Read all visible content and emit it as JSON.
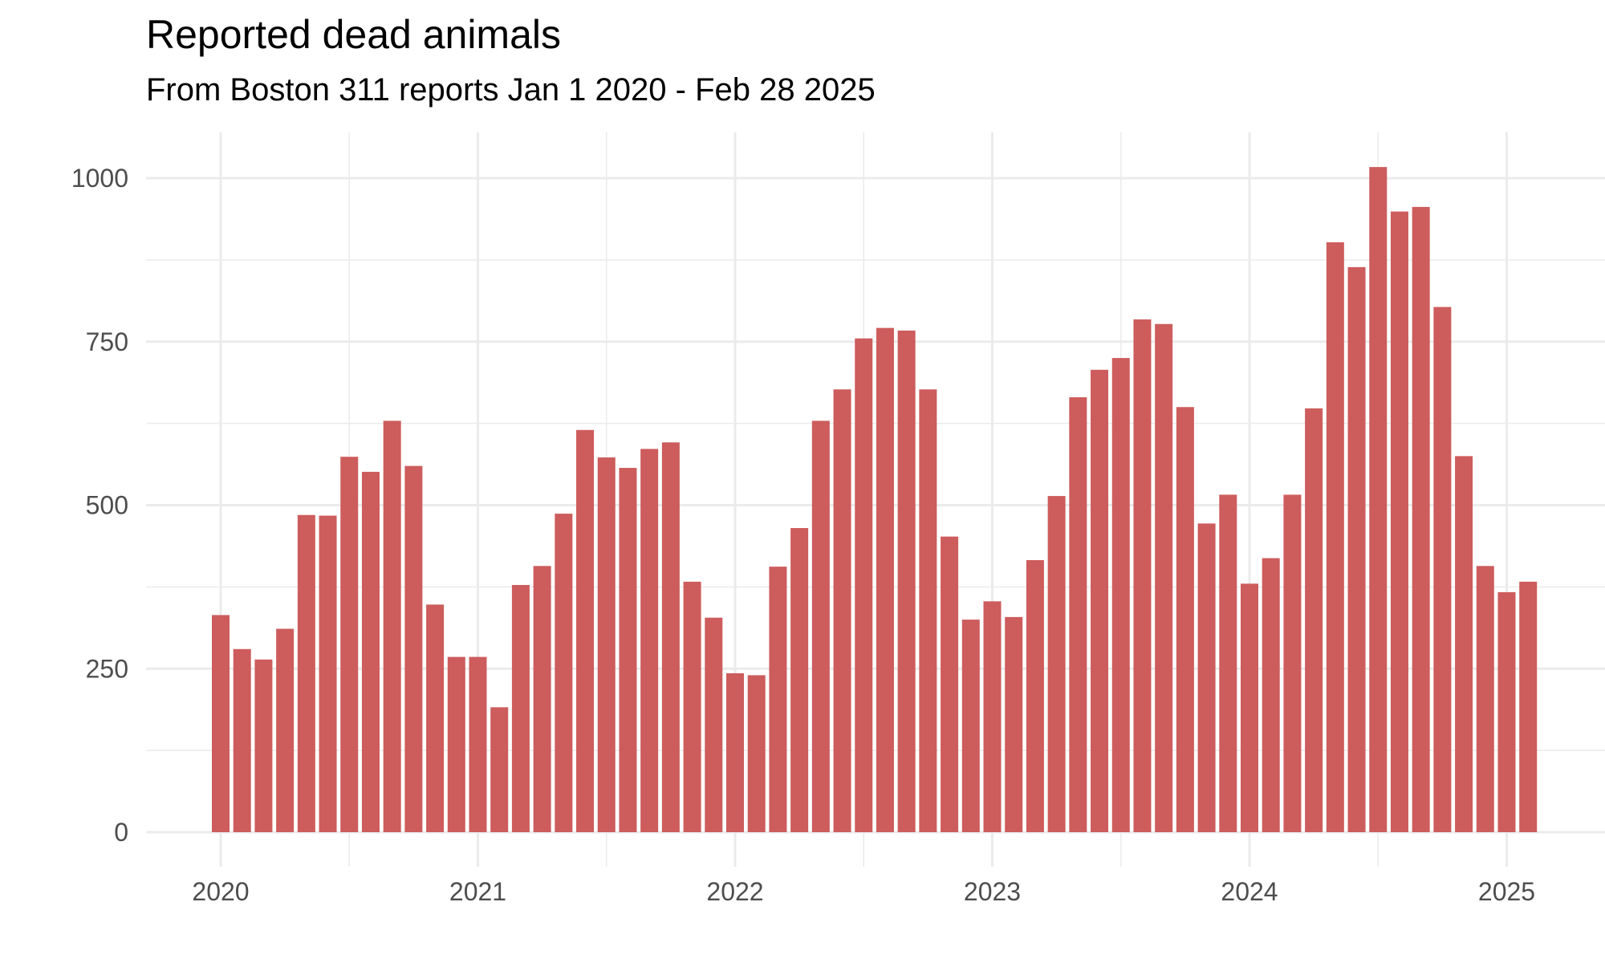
{
  "chart_data": {
    "type": "bar",
    "title": "Reported dead animals",
    "subtitle": "From Boston 311 reports Jan 1 2020 - Feb 28 2025",
    "xlabel": "",
    "ylabel": "",
    "bar_color": "#cd5c5c",
    "grid": true,
    "ylim": [
      0,
      1000
    ],
    "y_ticks": [
      0,
      250,
      500,
      750,
      1000
    ],
    "x_tick_labels": [
      "2020",
      "2021",
      "2022",
      "2023",
      "2024",
      "2025"
    ],
    "categories": [
      "2020-01",
      "2020-02",
      "2020-03",
      "2020-04",
      "2020-05",
      "2020-06",
      "2020-07",
      "2020-08",
      "2020-09",
      "2020-10",
      "2020-11",
      "2020-12",
      "2021-01",
      "2021-02",
      "2021-03",
      "2021-04",
      "2021-05",
      "2021-06",
      "2021-07",
      "2021-08",
      "2021-09",
      "2021-10",
      "2021-11",
      "2021-12",
      "2022-01",
      "2022-02",
      "2022-03",
      "2022-04",
      "2022-05",
      "2022-06",
      "2022-07",
      "2022-08",
      "2022-09",
      "2022-10",
      "2022-11",
      "2022-12",
      "2023-01",
      "2023-02",
      "2023-03",
      "2023-04",
      "2023-05",
      "2023-06",
      "2023-07",
      "2023-08",
      "2023-09",
      "2023-10",
      "2023-11",
      "2023-12",
      "2024-01",
      "2024-02",
      "2024-03",
      "2024-04",
      "2024-05",
      "2024-06",
      "2024-07",
      "2024-08",
      "2024-09",
      "2024-10",
      "2024-11",
      "2024-12",
      "2025-01",
      "2025-02"
    ],
    "values": [
      332,
      280,
      264,
      311,
      485,
      484,
      574,
      551,
      629,
      560,
      348,
      268,
      268,
      191,
      378,
      407,
      487,
      615,
      573,
      557,
      586,
      596,
      383,
      328,
      243,
      240,
      406,
      465,
      629,
      677,
      755,
      771,
      767,
      677,
      452,
      325,
      353,
      329,
      416,
      514,
      665,
      707,
      725,
      784,
      777,
      650,
      472,
      516,
      380,
      419,
      516,
      648,
      902,
      864,
      1017,
      949,
      956,
      803,
      575,
      407,
      367,
      383
    ]
  }
}
